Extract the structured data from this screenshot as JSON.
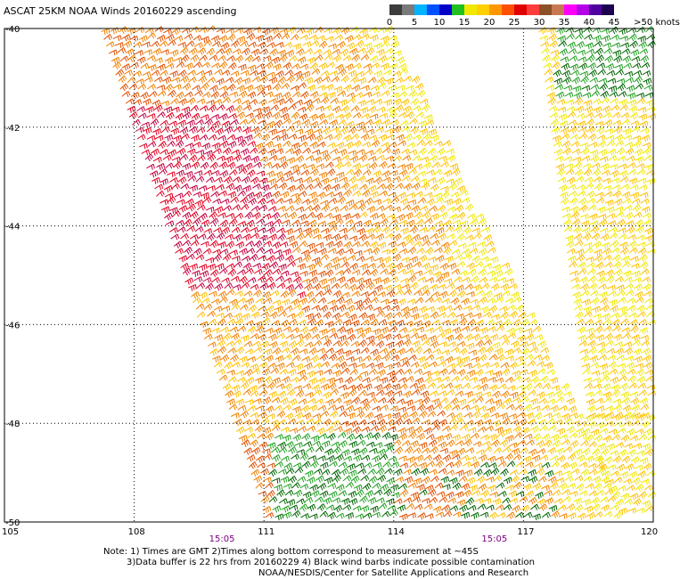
{
  "title": "ASCAT 25KM NOAA Winds 20160229 ascending",
  "colorbar": {
    "labels": [
      "0",
      "5",
      "10",
      "15",
      "20",
      "25",
      "30",
      "35",
      "40",
      "45",
      ">50 knots"
    ],
    "colors": [
      "#3c3c3c",
      "#7a7a7a",
      "#00b4ff",
      "#0050ff",
      "#0000c8",
      "#20c020",
      "#f0e800",
      "#ffd000",
      "#ff9800",
      "#ff5000",
      "#e00000",
      "#ff3c3c",
      "#8c5028",
      "#c87850",
      "#ff00ff",
      "#b400e6",
      "#5000a0",
      "#1e0050"
    ]
  },
  "map": {
    "lat_labels": [
      "-40",
      "-42",
      "-44",
      "-46",
      "-48",
      "-50"
    ],
    "lon_labels": [
      "105",
      "108",
      "111",
      "114",
      "117",
      "120"
    ],
    "lat_range": [
      -50,
      -40
    ],
    "lon_range": [
      105,
      120
    ],
    "time_labels": [
      {
        "text": "15:05",
        "lon": 110.0
      },
      {
        "text": "15:05",
        "lon": 116.3
      }
    ],
    "barb_colors": {
      "green": "#20a020",
      "darkgreen": "#006400",
      "yellow": "#f0e800",
      "gold": "#ffc000",
      "orange": "#f08000",
      "darkorange": "#e05000",
      "red": "#e00020",
      "crimson": "#c00040"
    }
  },
  "notes": {
    "line1": "Note: 1) Times are GMT 2)Times along bottom correspond to measurement at ~45S",
    "line2": "3)Data buffer is 22 hrs from 20160229 4) Black wind barbs indicate possible contamination",
    "line3": "NOAA/NESDIS/Center for Satellite Applications and Research"
  }
}
